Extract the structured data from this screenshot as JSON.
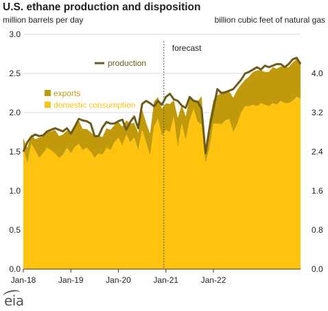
{
  "chart_data": {
    "type": "area",
    "title": "U.S. ethane production and disposition",
    "ylabel_left": "million barrels per day",
    "ylabel_right": "billion cubic feet of natural gas",
    "ylim": [
      0,
      3.0
    ],
    "yticks": [
      "0.0",
      "0.5",
      "1.0",
      "1.5",
      "2.0",
      "2.5",
      "3.0"
    ],
    "right_yticks": [
      "0.0",
      "0.8",
      "1.6",
      "2.4",
      "3.2",
      "4.0"
    ],
    "right_yticks_values": [
      0.0,
      0.8,
      1.6,
      2.4,
      3.2,
      4.0
    ],
    "right_ylim": [
      0,
      4.8
    ],
    "x_start_month": "2018-01",
    "xtick_labels": [
      "Jan-18",
      "Jan-19",
      "Jan-20",
      "Jan-21",
      "Jan-22"
    ],
    "annotation": "forecast",
    "forecast_start": "2021-01",
    "series": [
      {
        "name": "domestic consumption",
        "color": "#FFC20E",
        "values": [
          1.55,
          1.35,
          1.6,
          1.52,
          1.42,
          1.48,
          1.55,
          1.52,
          1.48,
          1.42,
          1.46,
          1.55,
          1.48,
          1.56,
          1.6,
          1.52,
          1.55,
          1.5,
          1.42,
          1.48,
          1.46,
          1.55,
          1.52,
          1.62,
          1.68,
          1.58,
          1.72,
          1.62,
          1.68,
          1.52,
          1.78,
          1.62,
          1.45,
          1.82,
          1.92,
          1.7,
          1.78,
          1.75,
          1.95,
          1.55,
          1.86,
          1.65,
          1.9,
          2.05,
          1.88,
          1.85,
          1.35,
          1.55,
          1.86,
          1.86,
          1.85,
          1.9,
          1.92,
          1.75,
          1.85,
          2.0,
          2.08,
          2.08,
          2.1,
          2.08,
          2.12,
          2.1,
          2.08,
          2.12,
          2.1,
          2.15,
          2.12,
          2.12,
          2.15,
          2.2,
          2.18
        ]
      },
      {
        "name": "exports",
        "color": "#C09A0A",
        "values": [
          0.12,
          0.2,
          0.12,
          0.14,
          0.26,
          0.22,
          0.2,
          0.24,
          0.3,
          0.28,
          0.26,
          0.22,
          0.24,
          0.25,
          0.3,
          0.27,
          0.24,
          0.25,
          0.28,
          0.22,
          0.23,
          0.25,
          0.26,
          0.22,
          0.2,
          0.24,
          0.18,
          0.24,
          0.19,
          0.22,
          0.26,
          0.25,
          0.28,
          0.32,
          0.28,
          0.35,
          0.34,
          0.36,
          0.21,
          0.38,
          0.24,
          0.3,
          0.3,
          0.1,
          0.26,
          0.36,
          0.15,
          0.35,
          0.3,
          0.36,
          0.4,
          0.36,
          0.35,
          0.44,
          0.44,
          0.36,
          0.34,
          0.38,
          0.42,
          0.46,
          0.42,
          0.42,
          0.44,
          0.46,
          0.46,
          0.44,
          0.46,
          0.46,
          0.49,
          0.48,
          0.44
        ]
      },
      {
        "name": "production",
        "color": "#6B5A1A",
        "values": [
          1.5,
          1.62,
          1.69,
          1.72,
          1.7,
          1.71,
          1.76,
          1.78,
          1.8,
          1.78,
          1.76,
          1.8,
          1.73,
          1.82,
          1.92,
          1.9,
          1.89,
          1.86,
          1.7,
          1.7,
          1.81,
          1.88,
          1.86,
          1.86,
          1.89,
          1.91,
          1.78,
          1.88,
          1.95,
          1.8,
          2.11,
          2.15,
          2.12,
          2.08,
          2.15,
          2.1,
          2.2,
          2.24,
          2.17,
          2.15,
          2.09,
          2.06,
          2.2,
          2.15,
          2.14,
          2.05,
          1.48,
          1.8,
          2.05,
          2.3,
          2.25,
          2.26,
          2.28,
          2.3,
          2.36,
          2.42,
          2.5,
          2.52,
          2.55,
          2.58,
          2.55,
          2.6,
          2.58,
          2.6,
          2.62,
          2.62,
          2.58,
          2.62,
          2.68,
          2.7,
          2.62
        ]
      }
    ]
  }
}
